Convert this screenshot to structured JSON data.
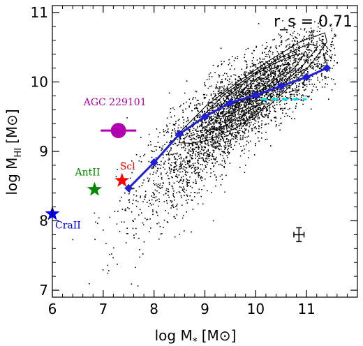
{
  "chart_data": {
    "type": "scatter",
    "title": "",
    "xlabel": {
      "main": "log M",
      "sub": "*",
      "unit": "[M",
      "unit_symbol": "⊙",
      "unit_close": "]"
    },
    "ylabel": {
      "main": "log M",
      "sub": "HI",
      "unit": "[M",
      "unit_symbol": "⊙",
      "unit_close": "]"
    },
    "xlim": [
      6.0,
      12.0
    ],
    "ylim": [
      6.9,
      11.1
    ],
    "x_ticks": [
      6,
      7,
      8,
      9,
      10,
      11
    ],
    "y_ticks": [
      7,
      8,
      9,
      10,
      11
    ],
    "correlation": "r_s = 0.71",
    "median_line": {
      "color": "#1f1fd6",
      "x": [
        7.5,
        8.0,
        8.5,
        9.0,
        9.5,
        10.0,
        10.5,
        11.0,
        11.4
      ],
      "y": [
        8.47,
        8.84,
        9.25,
        9.5,
        9.7,
        9.81,
        9.94,
        10.07,
        10.2
      ]
    },
    "dashed_line": {
      "color": "#00e5ee",
      "x": [
        10.1,
        11.0
      ],
      "y": [
        9.75,
        9.75
      ]
    },
    "error_bar": {
      "x": 10.85,
      "y": 7.8,
      "xerr": 0.1,
      "yerr": 0.1
    },
    "highlighted_points": [
      {
        "label": "AGC 229101",
        "x": 7.3,
        "y": 9.3,
        "marker": "circle",
        "color": "#b000b0",
        "xerr": 0.35
      },
      {
        "label": "Scl",
        "x": 7.37,
        "y": 8.58,
        "marker": "star",
        "color": "#ff0000"
      },
      {
        "label": "AntII",
        "x": 6.83,
        "y": 8.45,
        "marker": "star",
        "color": "#008800"
      },
      {
        "label": "CraII",
        "x": 6.0,
        "y": 8.1,
        "marker": "star",
        "color": "#0000ff"
      }
    ],
    "background_sample": {
      "marker": "dot",
      "color": "#000000",
      "description_visible": false
    }
  }
}
